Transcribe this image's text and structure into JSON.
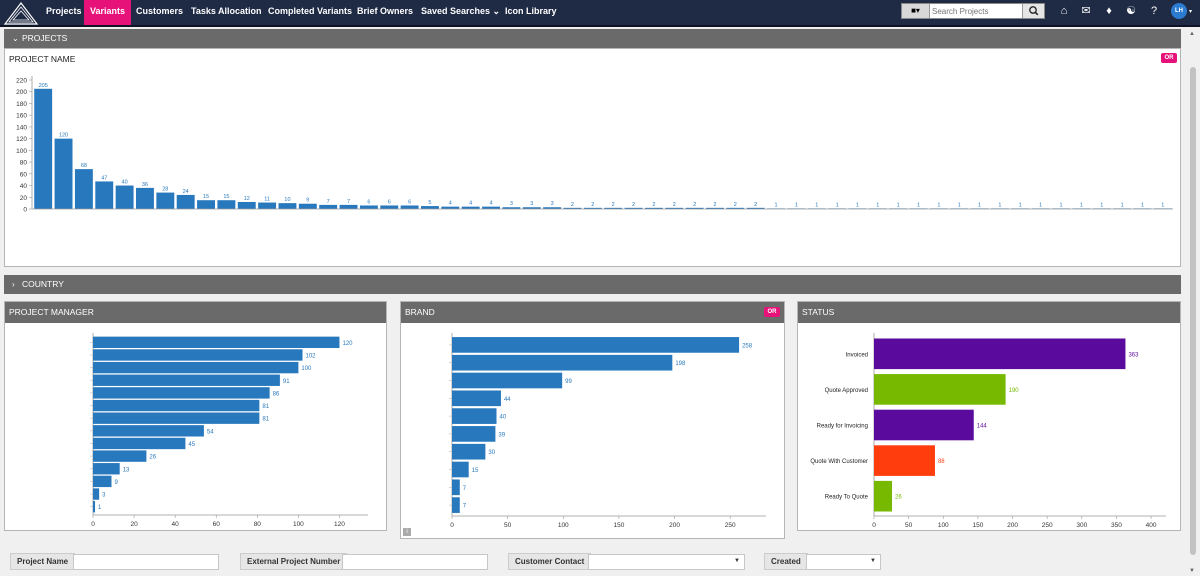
{
  "nav": {
    "items": [
      "Projects",
      "Variants",
      "Customers",
      "Tasks Allocation",
      "Completed Variants",
      "Brief Owners",
      "Saved Searches ⌄",
      "Icon Library"
    ],
    "active": "Variants"
  },
  "search": {
    "placeholder": "Search Projects"
  },
  "user": {
    "initials": "LH"
  },
  "sections": {
    "projects": "PROJECTS",
    "country": "COUNTRY"
  },
  "project_panel": {
    "title": "PROJECT NAME",
    "or_badge": "OR"
  },
  "pm_panel": {
    "title": "PROJECT MANAGER"
  },
  "brand_panel": {
    "title": "BRAND",
    "or_badge": "OR"
  },
  "status_panel": {
    "title": "STATUS"
  },
  "filters": {
    "project_name": "Project Name",
    "external_project_number": "External Project Number",
    "customer_contact": "Customer Contact",
    "created": "Created"
  },
  "colors": {
    "nav_bg": "#1f2a44",
    "accent": "#e6127a",
    "bar": "#2878bd",
    "header_bar": "#6a6a6a"
  },
  "chart_data": [
    {
      "type": "bar",
      "values": [
        205,
        120,
        68,
        47,
        40,
        36,
        28,
        24,
        15,
        15,
        12,
        11,
        10,
        9,
        7,
        7,
        6,
        6,
        6,
        5,
        4,
        4,
        4,
        3,
        3,
        3,
        2,
        2,
        2,
        2,
        2,
        2,
        2,
        2,
        2,
        2,
        1,
        1,
        1,
        1,
        1,
        1,
        1,
        1,
        1,
        1,
        1,
        1,
        1,
        1,
        1,
        1,
        1,
        1,
        1,
        1
      ],
      "yticks": [
        0,
        20,
        40,
        60,
        80,
        100,
        120,
        140,
        160,
        180,
        200,
        220
      ],
      "ylim": [
        0,
        220
      ],
      "grid": false
    },
    {
      "type": "bar",
      "orientation": "horizontal",
      "values": [
        120,
        102,
        100,
        91,
        86,
        81,
        81,
        54,
        45,
        26,
        13,
        9,
        3,
        1
      ],
      "xticks": [
        0,
        20,
        40,
        60,
        80,
        100,
        120
      ],
      "xlim": [
        0,
        130
      ],
      "grid": false
    },
    {
      "type": "bar",
      "orientation": "horizontal",
      "values": [
        258,
        198,
        99,
        44,
        40,
        39,
        30,
        15,
        7,
        7
      ],
      "xticks": [
        0,
        50,
        100,
        150,
        200,
        250
      ],
      "xlim": [
        0,
        275
      ],
      "grid": false
    },
    {
      "type": "bar",
      "orientation": "horizontal",
      "categories": [
        "Invoiced",
        "Quote Approved",
        "Ready for Invoicing",
        "Quote With Customer",
        "Ready To Quote"
      ],
      "values": [
        363,
        190,
        144,
        88,
        26
      ],
      "colors": [
        "#5b0a9e",
        "#76b900",
        "#5b0a9e",
        "#ff3d0d",
        "#76b900"
      ],
      "xticks": [
        0,
        50,
        100,
        150,
        200,
        250,
        300,
        350,
        400
      ],
      "xlim": [
        0,
        410
      ],
      "grid": false
    }
  ]
}
